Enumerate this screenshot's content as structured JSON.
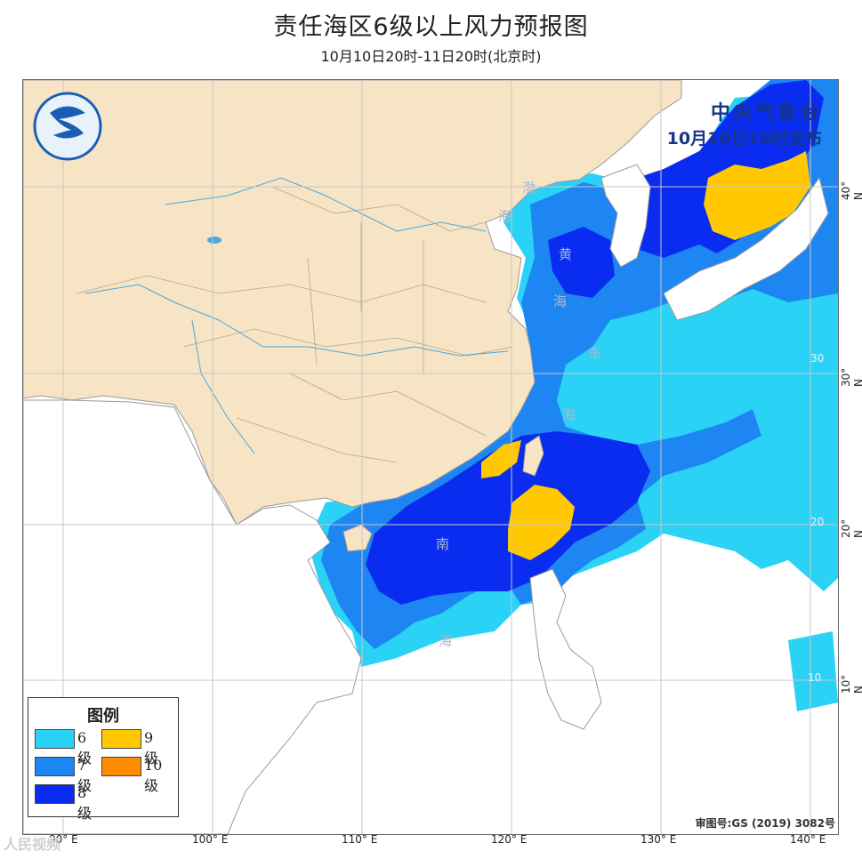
{
  "header": {
    "title": "责任海区6级以上风力预报图",
    "subtitle": "10月10日20时-11日20时(北京时)"
  },
  "agency": {
    "name": "中央气象台",
    "issued": "10月10日18时发布"
  },
  "legend": {
    "title": "图例",
    "items": [
      {
        "label": "6级",
        "color": "#2ad2f5"
      },
      {
        "label": "9级",
        "color": "#ffc800"
      },
      {
        "label": "7级",
        "color": "#1e86f2"
      },
      {
        "label": "10级",
        "color": "#ff8c00"
      },
      {
        "label": "8级",
        "color": "#0a2cf0"
      }
    ]
  },
  "longitude_labels": [
    "90° E",
    "100° E",
    "110° E",
    "120° E",
    "130° E",
    "140° E"
  ],
  "latitude_labels": [
    "40° N",
    "30° N",
    "20° N",
    "10° N"
  ],
  "inner_grid_labels": [
    "30",
    "20",
    "10"
  ],
  "sea_labels": {
    "bohai_1": "渤",
    "bohai_2": "海",
    "yellow_1": "黄",
    "yellow_2": "海",
    "east_1": "东",
    "east_2": "海",
    "south_1": "南",
    "south_2": "海"
  },
  "approval": "审图号:GS (2019) 3082号",
  "watermark": "人民视频",
  "colors": {
    "land_china": "#f7e4c4",
    "land_other": "#ffffff",
    "grid": "#c8c8c8",
    "border": "#a0a0a0",
    "river": "#4aa7df",
    "wind_6": "#2ad2f5",
    "wind_7": "#1e86f2",
    "wind_8": "#0a2cf0",
    "wind_9": "#ffc800"
  }
}
